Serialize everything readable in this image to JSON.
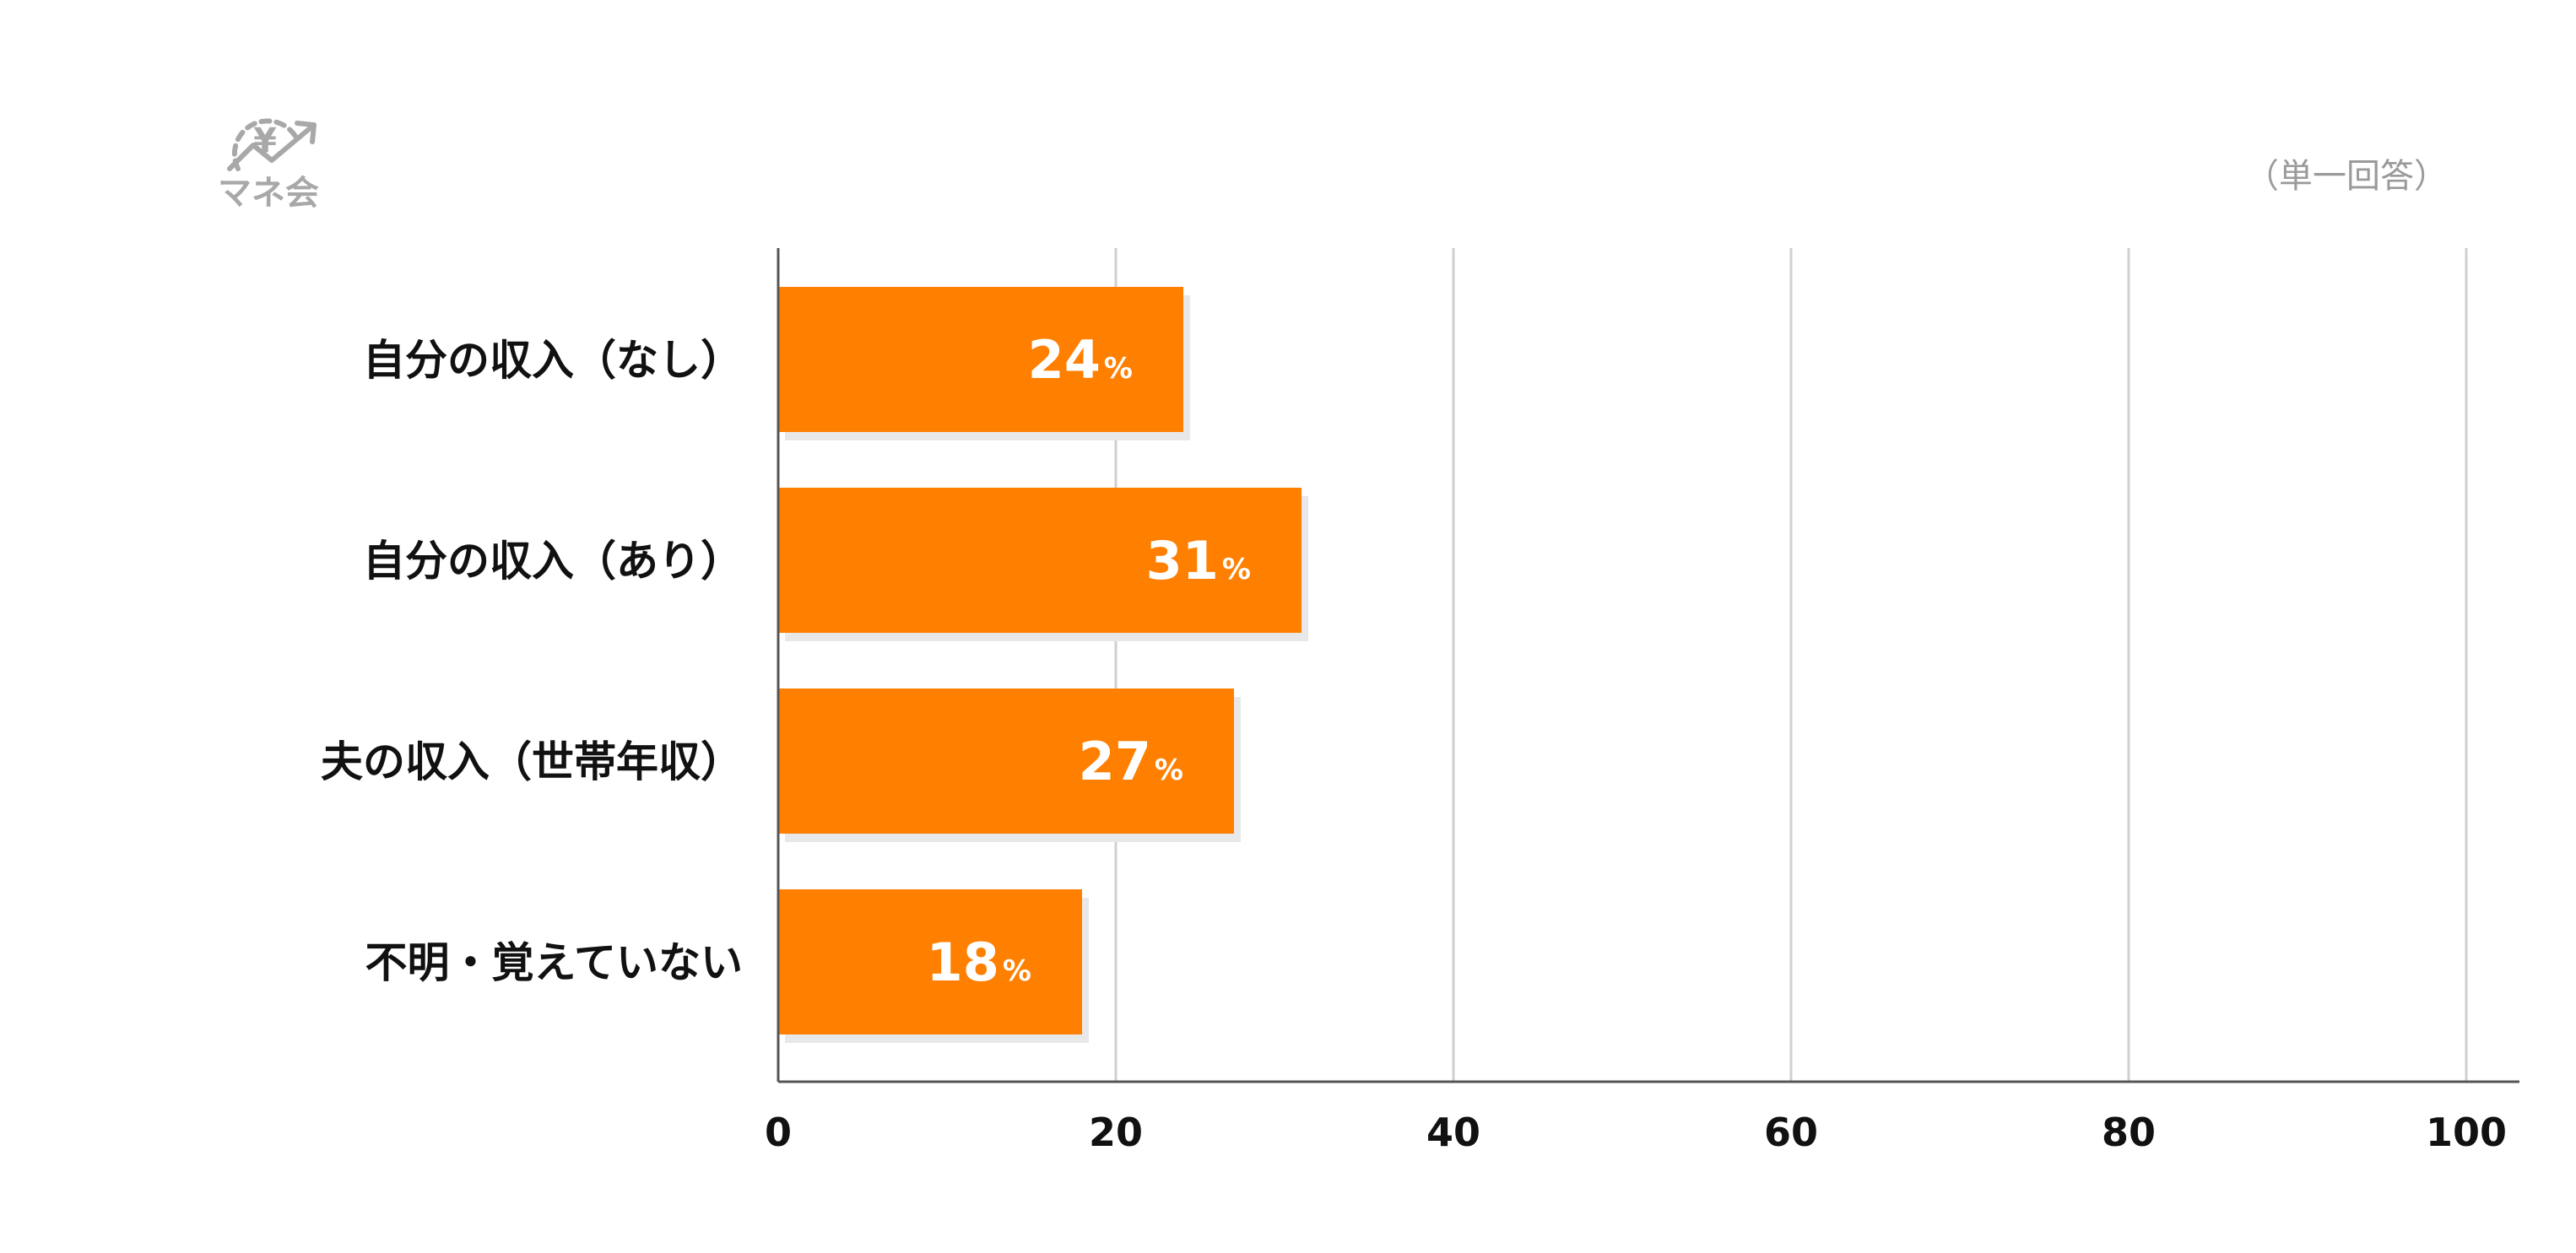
{
  "logo": {
    "text": "マネ会",
    "symbol": "¥"
  },
  "note": "（単一回答）",
  "colors": {
    "bar": "#ff7f00",
    "shadow": "#e8e8e8",
    "grid": "#cfcfcf",
    "axis": "#555555",
    "logo": "#a8a8a8"
  },
  "chart_data": {
    "type": "bar",
    "orientation": "horizontal",
    "categories": [
      "自分の収入（なし）",
      "自分の収入（あり）",
      "夫の収入（世帯年収）",
      "不明・覚えていない"
    ],
    "values": [
      24,
      31,
      27,
      18
    ],
    "value_suffix": "%",
    "xlim": [
      0,
      100
    ],
    "xticks": [
      "0",
      "20",
      "40",
      "60",
      "80",
      "100"
    ],
    "grid": true,
    "title": "",
    "xlabel": "",
    "ylabel": ""
  }
}
